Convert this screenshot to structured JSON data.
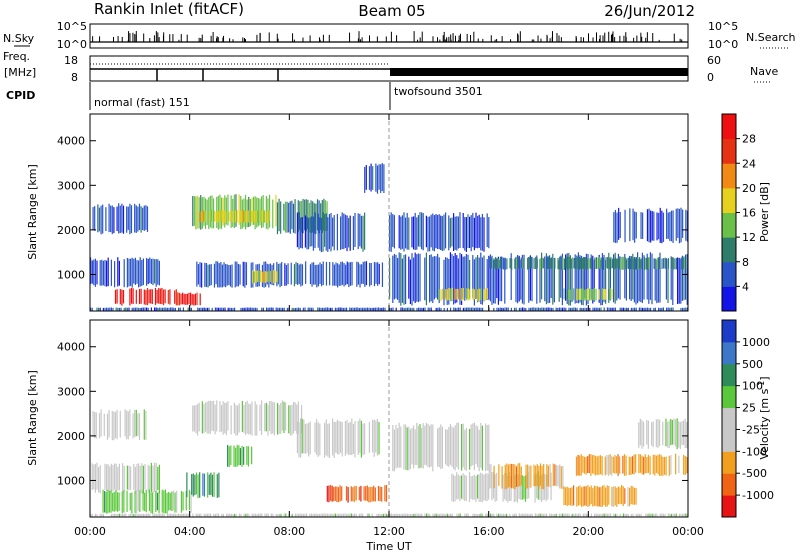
{
  "chart_data": {
    "type": "heatmap",
    "header": {
      "station": "Rankin Inlet (fitACF)",
      "beam": "Beam 05",
      "date": "26/Jun/2012"
    },
    "strip_labels": {
      "nsky": "N.Sky",
      "nsky_top": "10^5",
      "nsky_bottom": "10^0",
      "nsearch": "N.Search",
      "nsearch_top": "10^5",
      "nsearch_bottom": "10^0",
      "freq_line1": "Freq.",
      "freq_line2": "[MHz]",
      "freq_top": "18",
      "freq_bottom": "8",
      "nave": "Nave",
      "nave_top": "60",
      "nave_bottom": "0",
      "cpid": "CPID"
    },
    "cpid_segments": [
      {
        "label": "normal (fast) 151",
        "start_hour": 0,
        "end_hour": 12
      },
      {
        "label": "twofsound 3501",
        "start_hour": 12,
        "end_hour": 24
      }
    ],
    "x": {
      "label": "Time UT",
      "range_hours": [
        0,
        24
      ],
      "ticks": [
        "00:00",
        "04:00",
        "08:00",
        "12:00",
        "16:00",
        "20:00",
        "00:00"
      ]
    },
    "y": {
      "label": "Slant Range [km]",
      "range_km": [
        180,
        4600
      ],
      "ticks": [
        1000,
        2000,
        3000,
        4000
      ]
    },
    "panels": [
      {
        "quantity": "Power",
        "colorbar_title": "Power [dB]",
        "colorbar_ticks": [
          "4",
          "8",
          "12",
          "16",
          "20",
          "24",
          "28"
        ],
        "colorbar_colors": [
          "#1414e6",
          "#2a55c8",
          "#2e7d6a",
          "#6bc04a",
          "#e6d21e",
          "#f08a14",
          "#e63214",
          "#ee1010"
        ],
        "regions": [
          {
            "t0": 0.0,
            "t1": 24.0,
            "r0": 180,
            "r1": 260,
            "level": 1
          },
          {
            "t0": 0.0,
            "t1": 2.8,
            "r0": 700,
            "r1": 1400,
            "level": 1
          },
          {
            "t0": 0.1,
            "t1": 2.3,
            "r0": 1900,
            "r1": 2600,
            "level": 1
          },
          {
            "t0": 1.0,
            "t1": 3.5,
            "r0": 300,
            "r1": 700,
            "level": 7
          },
          {
            "t0": 3.5,
            "t1": 4.5,
            "r0": 300,
            "r1": 600,
            "level": 7
          },
          {
            "t0": 4.1,
            "t1": 7.5,
            "r0": 2000,
            "r1": 2800,
            "level": 3
          },
          {
            "t0": 4.4,
            "t1": 7.2,
            "r0": 2150,
            "r1": 2450,
            "level": 4
          },
          {
            "t0": 7.5,
            "t1": 9.5,
            "r0": 1900,
            "r1": 2700,
            "level": 2
          },
          {
            "t0": 4.2,
            "t1": 11.8,
            "r0": 700,
            "r1": 1300,
            "level": 1
          },
          {
            "t0": 6.5,
            "t1": 7.5,
            "r0": 800,
            "r1": 1100,
            "level": 4
          },
          {
            "t0": 8.3,
            "t1": 11.0,
            "r0": 1500,
            "r1": 2400,
            "level": 1
          },
          {
            "t0": 11.0,
            "t1": 11.8,
            "r0": 2800,
            "r1": 3500,
            "level": 1
          },
          {
            "t0": 12.0,
            "t1": 24.0,
            "r0": 300,
            "r1": 1500,
            "level": 1
          },
          {
            "t0": 12.0,
            "t1": 16.0,
            "r0": 1500,
            "r1": 2400,
            "level": 1
          },
          {
            "t0": 14.0,
            "t1": 16.0,
            "r0": 400,
            "r1": 700,
            "level": 4
          },
          {
            "t0": 16.0,
            "t1": 24.0,
            "r0": 1100,
            "r1": 1400,
            "level": 2
          },
          {
            "t0": 19.0,
            "t1": 21.0,
            "r0": 400,
            "r1": 700,
            "level": 3
          },
          {
            "t0": 21.0,
            "t1": 24.0,
            "r0": 1700,
            "r1": 2500,
            "level": 1
          }
        ]
      },
      {
        "quantity": "Velocity",
        "colorbar_title": "Velocity [m s",
        "colorbar_title_sup": "-1",
        "colorbar_title_end": "]",
        "colorbar_ticks": [
          "1000",
          "500",
          "100",
          "25",
          "-25",
          "-100",
          "-500",
          "-1000"
        ],
        "colorbar_colors": [
          "#1c3cc8",
          "#3c78c8",
          "#2e8c5a",
          "#5ac83a",
          "#c8c8c8",
          "#c8c8c8",
          "#f0a01e",
          "#f06414",
          "#e61414"
        ],
        "regions": [
          {
            "t0": 0.0,
            "t1": 24.0,
            "r0": 180,
            "r1": 260,
            "level": 4
          },
          {
            "t0": 0.0,
            "t1": 2.8,
            "r0": 700,
            "r1": 1400,
            "level": 4
          },
          {
            "t0": 0.1,
            "t1": 2.3,
            "r0": 1900,
            "r1": 2600,
            "level": 4
          },
          {
            "t0": 0.5,
            "t1": 4.2,
            "r0": 250,
            "r1": 800,
            "level": 3
          },
          {
            "t0": 4.1,
            "t1": 8.5,
            "r0": 2000,
            "r1": 2800,
            "level": 4
          },
          {
            "t0": 3.8,
            "t1": 5.2,
            "r0": 600,
            "r1": 1200,
            "level": 2
          },
          {
            "t0": 5.5,
            "t1": 6.5,
            "r0": 1300,
            "r1": 1800,
            "level": 3
          },
          {
            "t0": 8.3,
            "t1": 11.8,
            "r0": 1500,
            "r1": 2400,
            "level": 4
          },
          {
            "t0": 9.5,
            "t1": 12.0,
            "r0": 500,
            "r1": 900,
            "level": 7
          },
          {
            "t0": 12.0,
            "t1": 16.0,
            "r0": 1200,
            "r1": 2300,
            "level": 4
          },
          {
            "t0": 14.5,
            "t1": 18.5,
            "r0": 500,
            "r1": 1200,
            "level": 4
          },
          {
            "t0": 16.0,
            "t1": 19.0,
            "r0": 800,
            "r1": 1400,
            "level": 6
          },
          {
            "t0": 19.0,
            "t1": 22.0,
            "r0": 400,
            "r1": 900,
            "level": 6
          },
          {
            "t0": 19.5,
            "t1": 24.0,
            "r0": 1100,
            "r1": 1600,
            "level": 6
          },
          {
            "t0": 22.0,
            "t1": 24.0,
            "r0": 1700,
            "r1": 2400,
            "level": 4
          }
        ]
      }
    ]
  }
}
